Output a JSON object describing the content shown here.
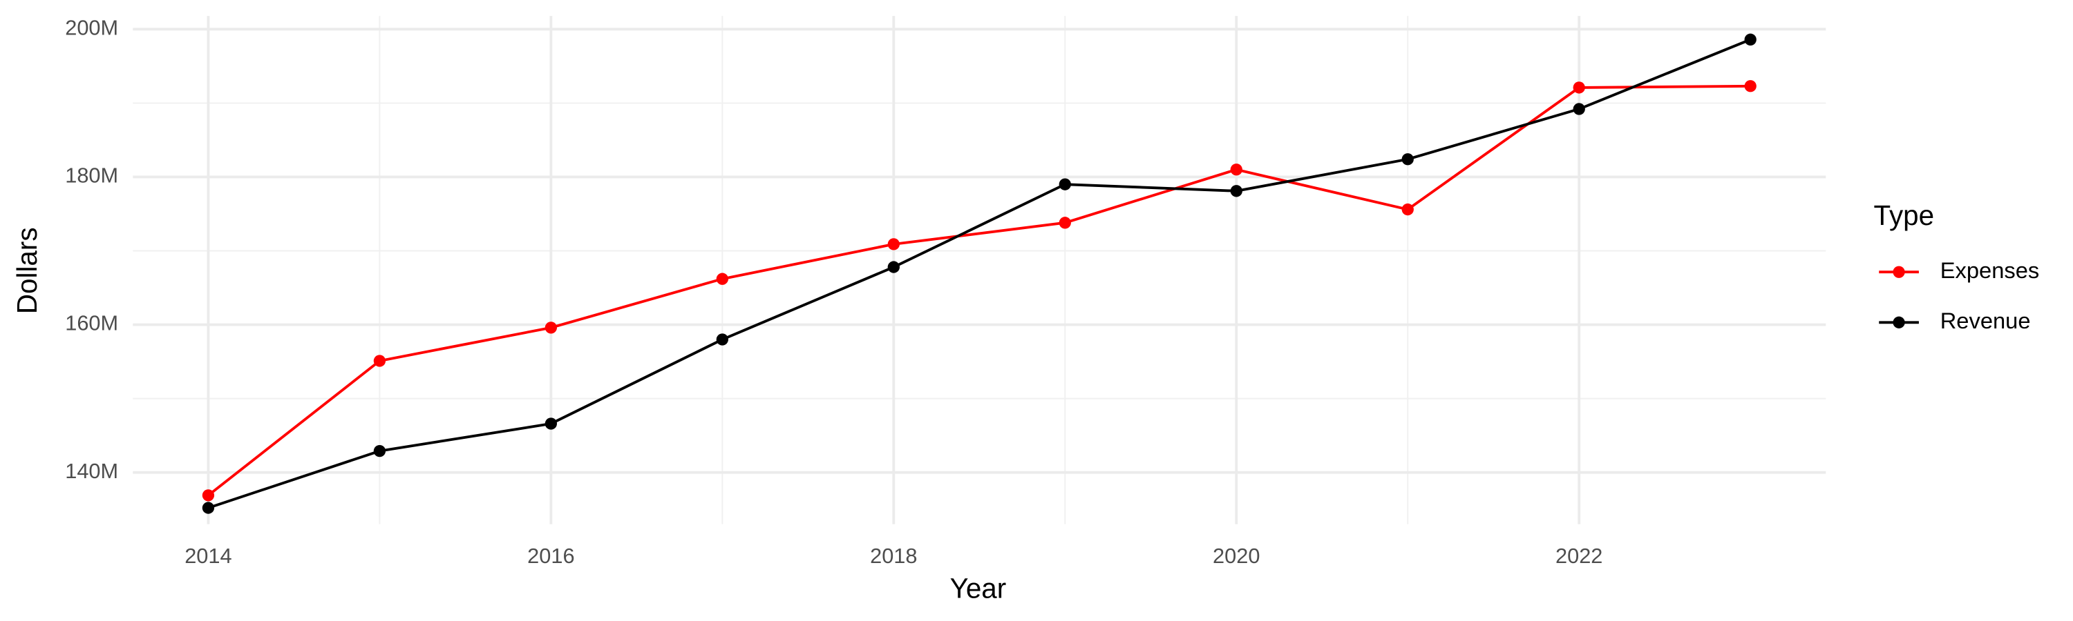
{
  "chart_data": {
    "type": "line",
    "x_label": "Year",
    "y_label": "Dollars",
    "legend_title": "Type",
    "x": [
      2014,
      2015,
      2016,
      2017,
      2018,
      2019,
      2020,
      2021,
      2022,
      2023
    ],
    "series": [
      {
        "name": "Expenses",
        "color": "#ff0000",
        "values": [
          136900000,
          155100000,
          159600000,
          166200000,
          170900000,
          173800000,
          181000000,
          175600000,
          192100000,
          192300000
        ]
      },
      {
        "name": "Revenue",
        "color": "#000000",
        "values": [
          135200000,
          142900000,
          146600000,
          158000000,
          167800000,
          179000000,
          178100000,
          182400000,
          189200000,
          198600000
        ]
      }
    ],
    "xlim": [
      2013.56,
      2023.44
    ],
    "xticks": [
      2014,
      2016,
      2018,
      2020,
      2022
    ],
    "ylim": [
      133000000,
      201800000
    ],
    "yticks": [
      {
        "value": 140000000,
        "label": "140M"
      },
      {
        "value": 160000000,
        "label": "160M"
      },
      {
        "value": 180000000,
        "label": "180M"
      },
      {
        "value": 200000000,
        "label": "200M"
      }
    ],
    "grid": true,
    "legend": "right"
  }
}
